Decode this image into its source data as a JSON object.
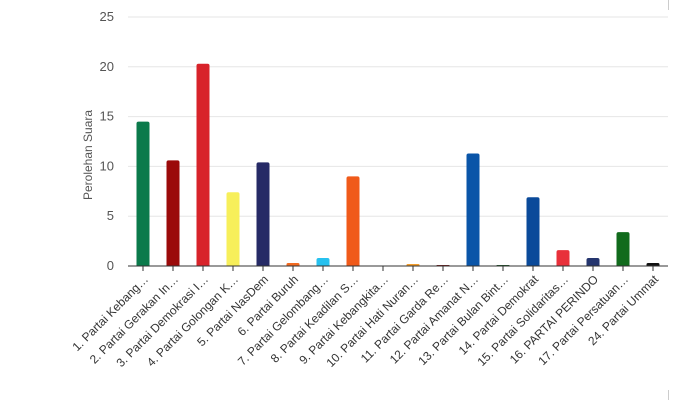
{
  "chart_data": {
    "type": "bar",
    "ylabel": "Perolehan Suara",
    "ylim": [
      0,
      25
    ],
    "yticks": [
      "0",
      "5",
      "10",
      "15",
      "20",
      "25"
    ],
    "grid": true,
    "legend": "none",
    "categories": [
      "1. Partai Kebang…",
      "2. Partai Gerakan In…",
      "3. Partai Demokrasi I…",
      "4. Partai Golongan K…",
      "5. Partai NasDem",
      "6. Partai Buruh",
      "7. Partai Gelombang…",
      "8. Partai Keadilan S…",
      "9. Partai Kebangkita…",
      "10. Partai Hati Nuran…",
      "11. Partai Garda Re…",
      "12. Partai Amanat N…",
      "13. Partai Bulan Bint…",
      "14. Partai Demokrat",
      "15. Partai Solidaritas…",
      "16. PARTAI PERINDO",
      "17. Partai Persatuan…",
      "24. Partai Ummat"
    ],
    "values": [
      14.5,
      10.6,
      20.3,
      7.4,
      10.4,
      0.3,
      0.8,
      9.0,
      0,
      0.2,
      0.1,
      11.3,
      0.1,
      6.9,
      1.6,
      0.8,
      3.4,
      0.3
    ],
    "colors": [
      "#0b7a4b",
      "#9b0a0a",
      "#d8232a",
      "#f7ef5a",
      "#262a66",
      "#f26a21",
      "#27c1ef",
      "#f05a1a",
      "#1f6b3a",
      "#f39c2a",
      "#7a1c1c",
      "#0a55a8",
      "#1d5a2a",
      "#0a4a9a",
      "#e8303a",
      "#25356e",
      "#116b1c",
      "#111111"
    ]
  }
}
